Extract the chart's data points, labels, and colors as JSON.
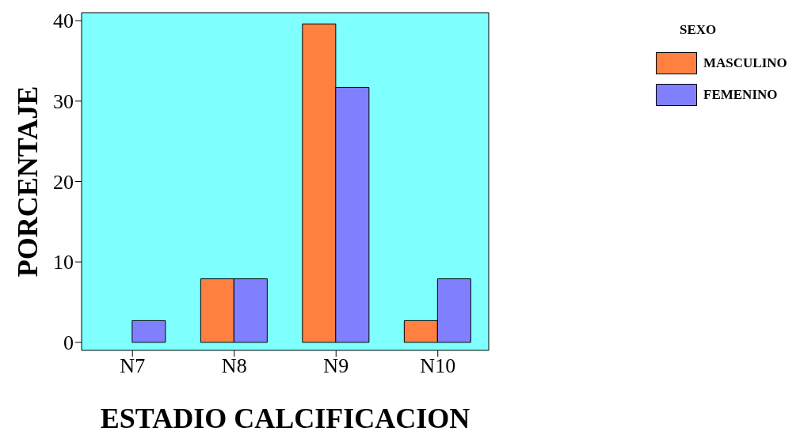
{
  "chart_data": {
    "type": "bar",
    "xlabel": "ESTADIO CALCIFICACION",
    "ylabel": "PORCENTAJE",
    "legend_title": "SEXO",
    "categories": [
      "N7",
      "N8",
      "N9",
      "N10"
    ],
    "series": [
      {
        "name": "MASCULINO",
        "color": "#ff8040",
        "values": [
          0,
          7.9,
          39.6,
          2.7
        ]
      },
      {
        "name": "FEMENINO",
        "color": "#8080ff",
        "values": [
          2.7,
          7.9,
          31.7,
          7.9
        ]
      }
    ],
    "ylim": [
      -1,
      41
    ],
    "yticks": [
      0,
      10,
      20,
      30,
      40
    ],
    "grid": false,
    "legend": "top right"
  }
}
